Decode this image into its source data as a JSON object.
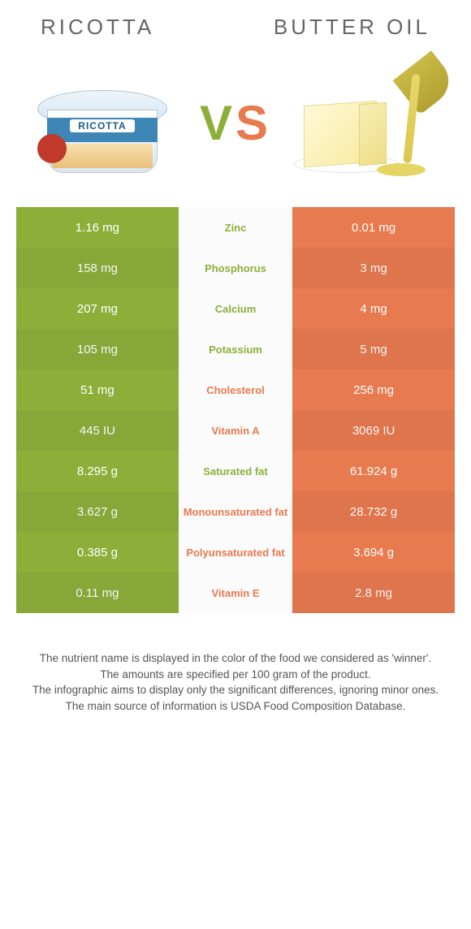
{
  "header": {
    "left_title": "RICOTTA",
    "right_title": "BUTTER OIL",
    "vs_v": "V",
    "vs_s": "S",
    "ricotta_label": "RICOTTA"
  },
  "colors": {
    "left": "#8daf3a",
    "right": "#e77a4f",
    "mid_bg": "#fbfbfb",
    "header_text": "#666666",
    "cell_text": "#ffffff"
  },
  "table": {
    "rows": [
      {
        "nutrient": "Zinc",
        "left": "1.16 mg",
        "right": "0.01 mg",
        "winner": "left"
      },
      {
        "nutrient": "Phosphorus",
        "left": "158 mg",
        "right": "3 mg",
        "winner": "left"
      },
      {
        "nutrient": "Calcium",
        "left": "207 mg",
        "right": "4 mg",
        "winner": "left"
      },
      {
        "nutrient": "Potassium",
        "left": "105 mg",
        "right": "5 mg",
        "winner": "left"
      },
      {
        "nutrient": "Cholesterol",
        "left": "51 mg",
        "right": "256 mg",
        "winner": "right"
      },
      {
        "nutrient": "Vitamin A",
        "left": "445 IU",
        "right": "3069 IU",
        "winner": "right"
      },
      {
        "nutrient": "Saturated fat",
        "left": "8.295 g",
        "right": "61.924 g",
        "winner": "left"
      },
      {
        "nutrient": "Monounsaturated fat",
        "left": "3.627 g",
        "right": "28.732 g",
        "winner": "right"
      },
      {
        "nutrient": "Polyunsaturated fat",
        "left": "0.385 g",
        "right": "3.694 g",
        "winner": "right"
      },
      {
        "nutrient": "Vitamin E",
        "left": "0.11 mg",
        "right": "2.8 mg",
        "winner": "right"
      }
    ]
  },
  "footnotes": [
    "The nutrient name is displayed in the color of the food we considered as 'winner'.",
    "The amounts are specified per 100 gram of the product.",
    "The infographic aims to display only the significant differences, ignoring minor ones.",
    "The main source of information is USDA Food Composition Database."
  ]
}
